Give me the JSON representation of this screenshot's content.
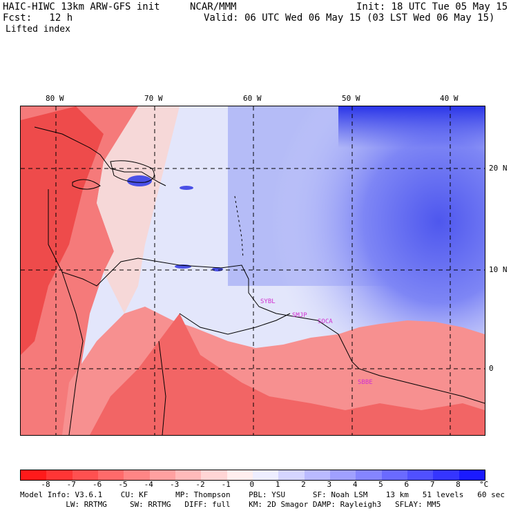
{
  "header": {
    "model": "HAIC-HIWC 13km ARW-GFS init",
    "org": "NCAR/MMM",
    "init": "Init: 18 UTC Tue 05 May 15",
    "fcst": "Fcst:   12 h",
    "valid": "Valid: 06 UTC Wed 06 May 15 (03 LST Wed 06 May 15)",
    "field": "Lifted index"
  },
  "map": {
    "lon_labels": [
      "80 W",
      "70 W",
      "60 W",
      "50 W",
      "40 W"
    ],
    "lat_labels": [
      "20 N",
      "10 N",
      "0"
    ],
    "stations": [
      "SYBL",
      "SMJP",
      "SOCA",
      "SBBE"
    ]
  },
  "colorbar": {
    "unit": "°C",
    "ticks": [
      "-8",
      "-7",
      "-6",
      "-5",
      "-4",
      "-3",
      "-2",
      "-1",
      "0",
      "1",
      "2",
      "3",
      "4",
      "5",
      "6",
      "7",
      "8"
    ],
    "colors": [
      "#ff1a1a",
      "#ff3535",
      "#ff5050",
      "#ff6a6a",
      "#ff8585",
      "#ffa0a0",
      "#ffbaba",
      "#ffd5d5",
      "#ffeeee",
      "#eeeeff",
      "#d5d5ff",
      "#babaff",
      "#a0a0ff",
      "#8585ff",
      "#6a6aff",
      "#5050ff",
      "#3535ff",
      "#1a1aff"
    ]
  },
  "footer": {
    "line1": "Model Info: V3.6.1    CU: KF      MP: Thompson    PBL: YSU      SF: Noah LSM    13 km   51 levels   60 sec",
    "line2": "          LW: RRTMG     SW: RRTMG   DIFF: full    KM: 2D Smagor DAMP: Rayleigh3   SFLAY: MM5"
  }
}
